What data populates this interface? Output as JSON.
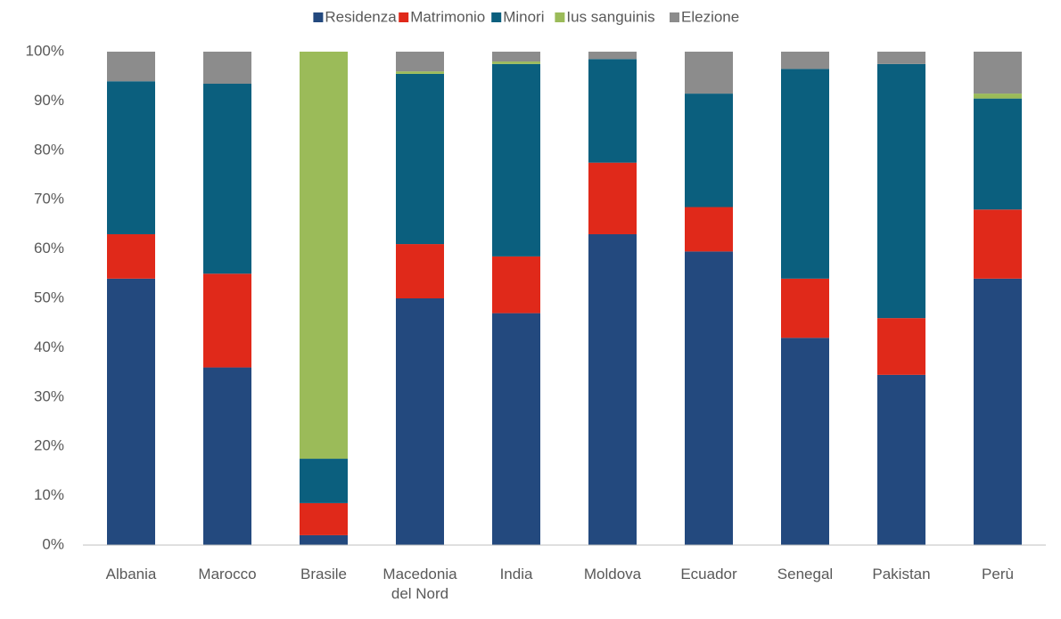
{
  "chart_data": {
    "type": "stacked_bar",
    "categories": [
      "Albania",
      "Marocco",
      "Brasile",
      "Macedonia del Nord",
      "India",
      "Moldova",
      "Ecuador",
      "Senegal",
      "Pakistan",
      "Perù"
    ],
    "series": [
      {
        "name": "Residenza",
        "color": "#23497e",
        "values": [
          54,
          36,
          2,
          50,
          47,
          63,
          59.5,
          42,
          34.5,
          54
        ]
      },
      {
        "name": "Matrimonio",
        "color": "#e0291a",
        "values": [
          9,
          19,
          6.5,
          11,
          11.5,
          14.5,
          9,
          12,
          11.5,
          14
        ]
      },
      {
        "name": "Minori",
        "color": "#0b5f7e",
        "values": [
          31,
          38.5,
          9,
          34.5,
          39,
          21,
          23,
          42.5,
          51.5,
          22.5
        ]
      },
      {
        "name": "Ius sanguinis",
        "color": "#9bbb59",
        "values": [
          0,
          0,
          82.5,
          0.5,
          0.5,
          0,
          0,
          0,
          0,
          1
        ]
      },
      {
        "name": "Elezione",
        "color": "#8c8c8c",
        "values": [
          6,
          6.5,
          0,
          4,
          2,
          1.5,
          8.5,
          3.5,
          2.5,
          8.5
        ]
      }
    ],
    "ylim": [
      0,
      100
    ],
    "yticks": [
      {
        "value": 0,
        "label": "0%"
      },
      {
        "value": 10,
        "label": "10%"
      },
      {
        "value": 20,
        "label": "20%"
      },
      {
        "value": 30,
        "label": "30%"
      },
      {
        "value": 40,
        "label": "40%"
      },
      {
        "value": 50,
        "label": "50%"
      },
      {
        "value": 60,
        "label": "60%"
      },
      {
        "value": 70,
        "label": "70%"
      },
      {
        "value": 80,
        "label": "80%"
      },
      {
        "value": 90,
        "label": "90%"
      },
      {
        "value": 100,
        "label": "100%"
      }
    ],
    "legend": "top"
  }
}
